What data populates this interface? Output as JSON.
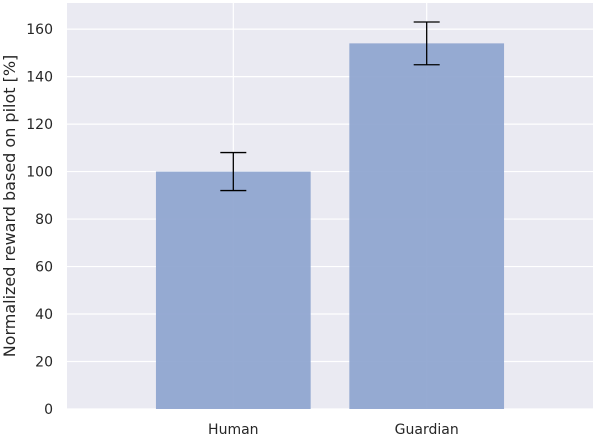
{
  "chart_data": {
    "type": "bar",
    "title": "",
    "xlabel": "",
    "ylabel": "Normalized reward based on pilot [%]",
    "categories": [
      "Human",
      "Guardian"
    ],
    "values": [
      100,
      154
    ],
    "errors": [
      8,
      9
    ],
    "ylim": [
      0,
      171
    ],
    "yticks": [
      "0",
      "20",
      "40",
      "60",
      "80",
      "100",
      "120",
      "140",
      "160"
    ],
    "grid": true,
    "legend": "none",
    "colors": {
      "bar": "#8da4cf",
      "background": "#eaeaf2",
      "grid": "#ffffff",
      "errorbar": "#000000"
    }
  }
}
